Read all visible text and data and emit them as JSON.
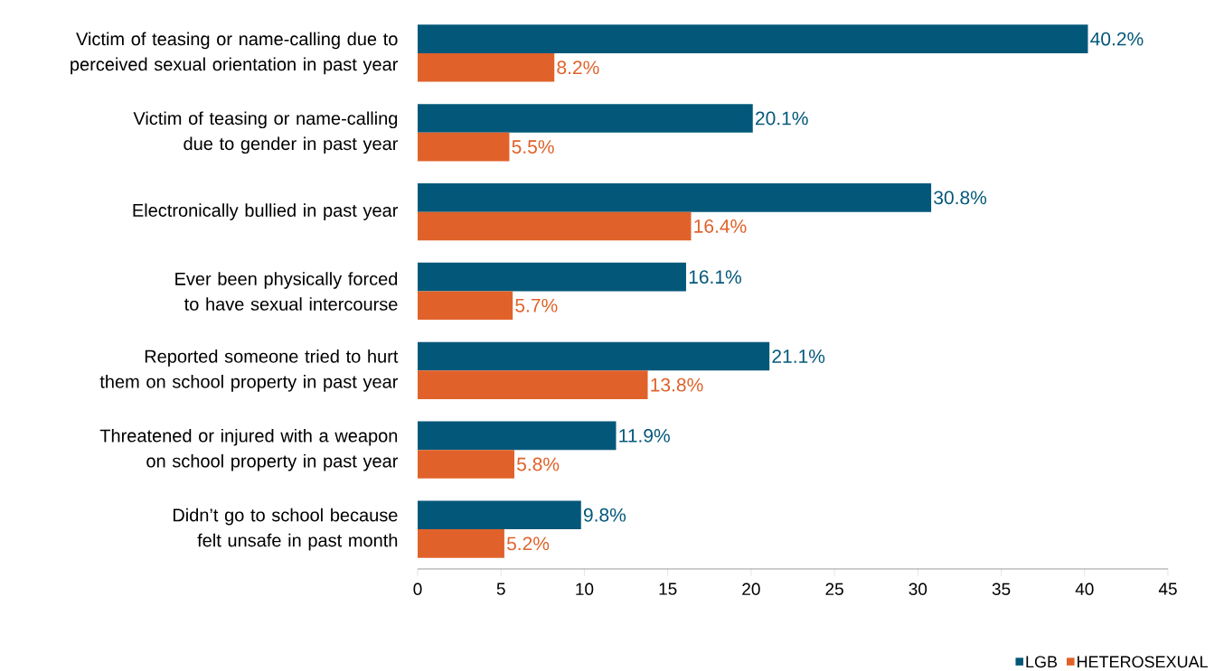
{
  "chart_data": {
    "type": "bar",
    "orientation": "horizontal",
    "categories": [
      "Victim of teasing or name-calling due to perceived sexual orientation in past year",
      "Victim of teasing or name-calling due to gender in past year",
      "Electronically bullied in past year",
      "Ever been physically forced to have sexual intercourse",
      "Reported someone tried to hurt them on school property in past year",
      "Threatened or injured with a weapon on school property in past year",
      "Didn’t go to school because felt unsafe in past month"
    ],
    "series": [
      {
        "name": "LGB",
        "color": "#03587a",
        "values": [
          40.2,
          20.1,
          30.8,
          16.1,
          21.1,
          11.9,
          9.8
        ],
        "value_labels": [
          "40.2%",
          "20.1%",
          "30.8%",
          "16.1%",
          "21.1%",
          "11.9%",
          "9.8%"
        ]
      },
      {
        "name": "HETEROSEXUAL",
        "color": "#e0622a",
        "values": [
          8.2,
          5.5,
          16.4,
          5.7,
          13.8,
          5.8,
          5.2
        ],
        "value_labels": [
          "8.2%",
          "5.5%",
          "16.4%",
          "5.7%",
          "13.8%",
          "5.8%",
          "5.2%"
        ]
      }
    ],
    "xlim": [
      0,
      45
    ],
    "xticks": [
      0,
      5,
      10,
      15,
      20,
      25,
      30,
      35,
      40,
      45
    ],
    "legend": "bottom right",
    "grid": false
  }
}
